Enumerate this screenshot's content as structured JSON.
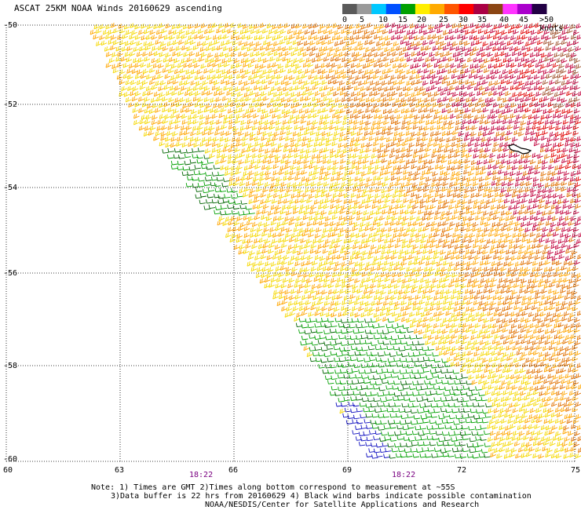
{
  "title": "ASCAT 25KM NOAA Winds 20160629 ascending",
  "colorbar": {
    "labels": [
      "0",
      "5",
      "10",
      "15",
      "20",
      "25",
      "30",
      "35",
      "40",
      "45",
      ">50 knots"
    ],
    "colors": [
      "#5a5a5a",
      "#9a9a9a",
      "#00c8ff",
      "#0050ff",
      "#00a000",
      "#ffee00",
      "#ffaa00",
      "#ff5500",
      "#ff0000",
      "#aa0044",
      "#8b4513",
      "#ff33ff",
      "#aa00cc",
      "#220044"
    ]
  },
  "lat_labels": [
    "-50",
    "-52",
    "-54",
    "-56",
    "-58",
    "-60"
  ],
  "lon_labels": [
    "60",
    "63",
    "66",
    "69",
    "72",
    "75"
  ],
  "time_labels": [
    "18:22",
    "18:22"
  ],
  "notes": [
    "Note: 1) Times are GMT 2)Times along bottom correspond to measurement at ~55S",
    "3)Data buffer is 22 hrs from 20160629 4) Black wind barbs indicate possible contamination",
    "NOAA/NESDIS/Center for Satellite Applications and Research"
  ],
  "wind_colors": {
    "green": "#00a000",
    "dark_green": "#006400",
    "blue": "#1010c0",
    "yellow": "#f5d800",
    "orange": "#ffa500",
    "dark_orange": "#e07000",
    "red": "#e00000",
    "crimson": "#c0003c",
    "brown": "#a0522d"
  }
}
